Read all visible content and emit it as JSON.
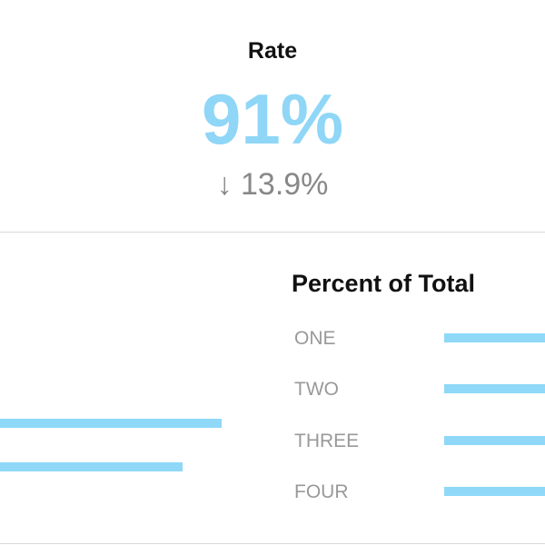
{
  "kpi": {
    "title": "Rate",
    "value": "91%",
    "change": "↓ 13.9%"
  },
  "breakdown": {
    "title": "Percent of Total",
    "rows": [
      "ONE",
      "TWO",
      "THREE",
      "FOUR"
    ]
  }
}
